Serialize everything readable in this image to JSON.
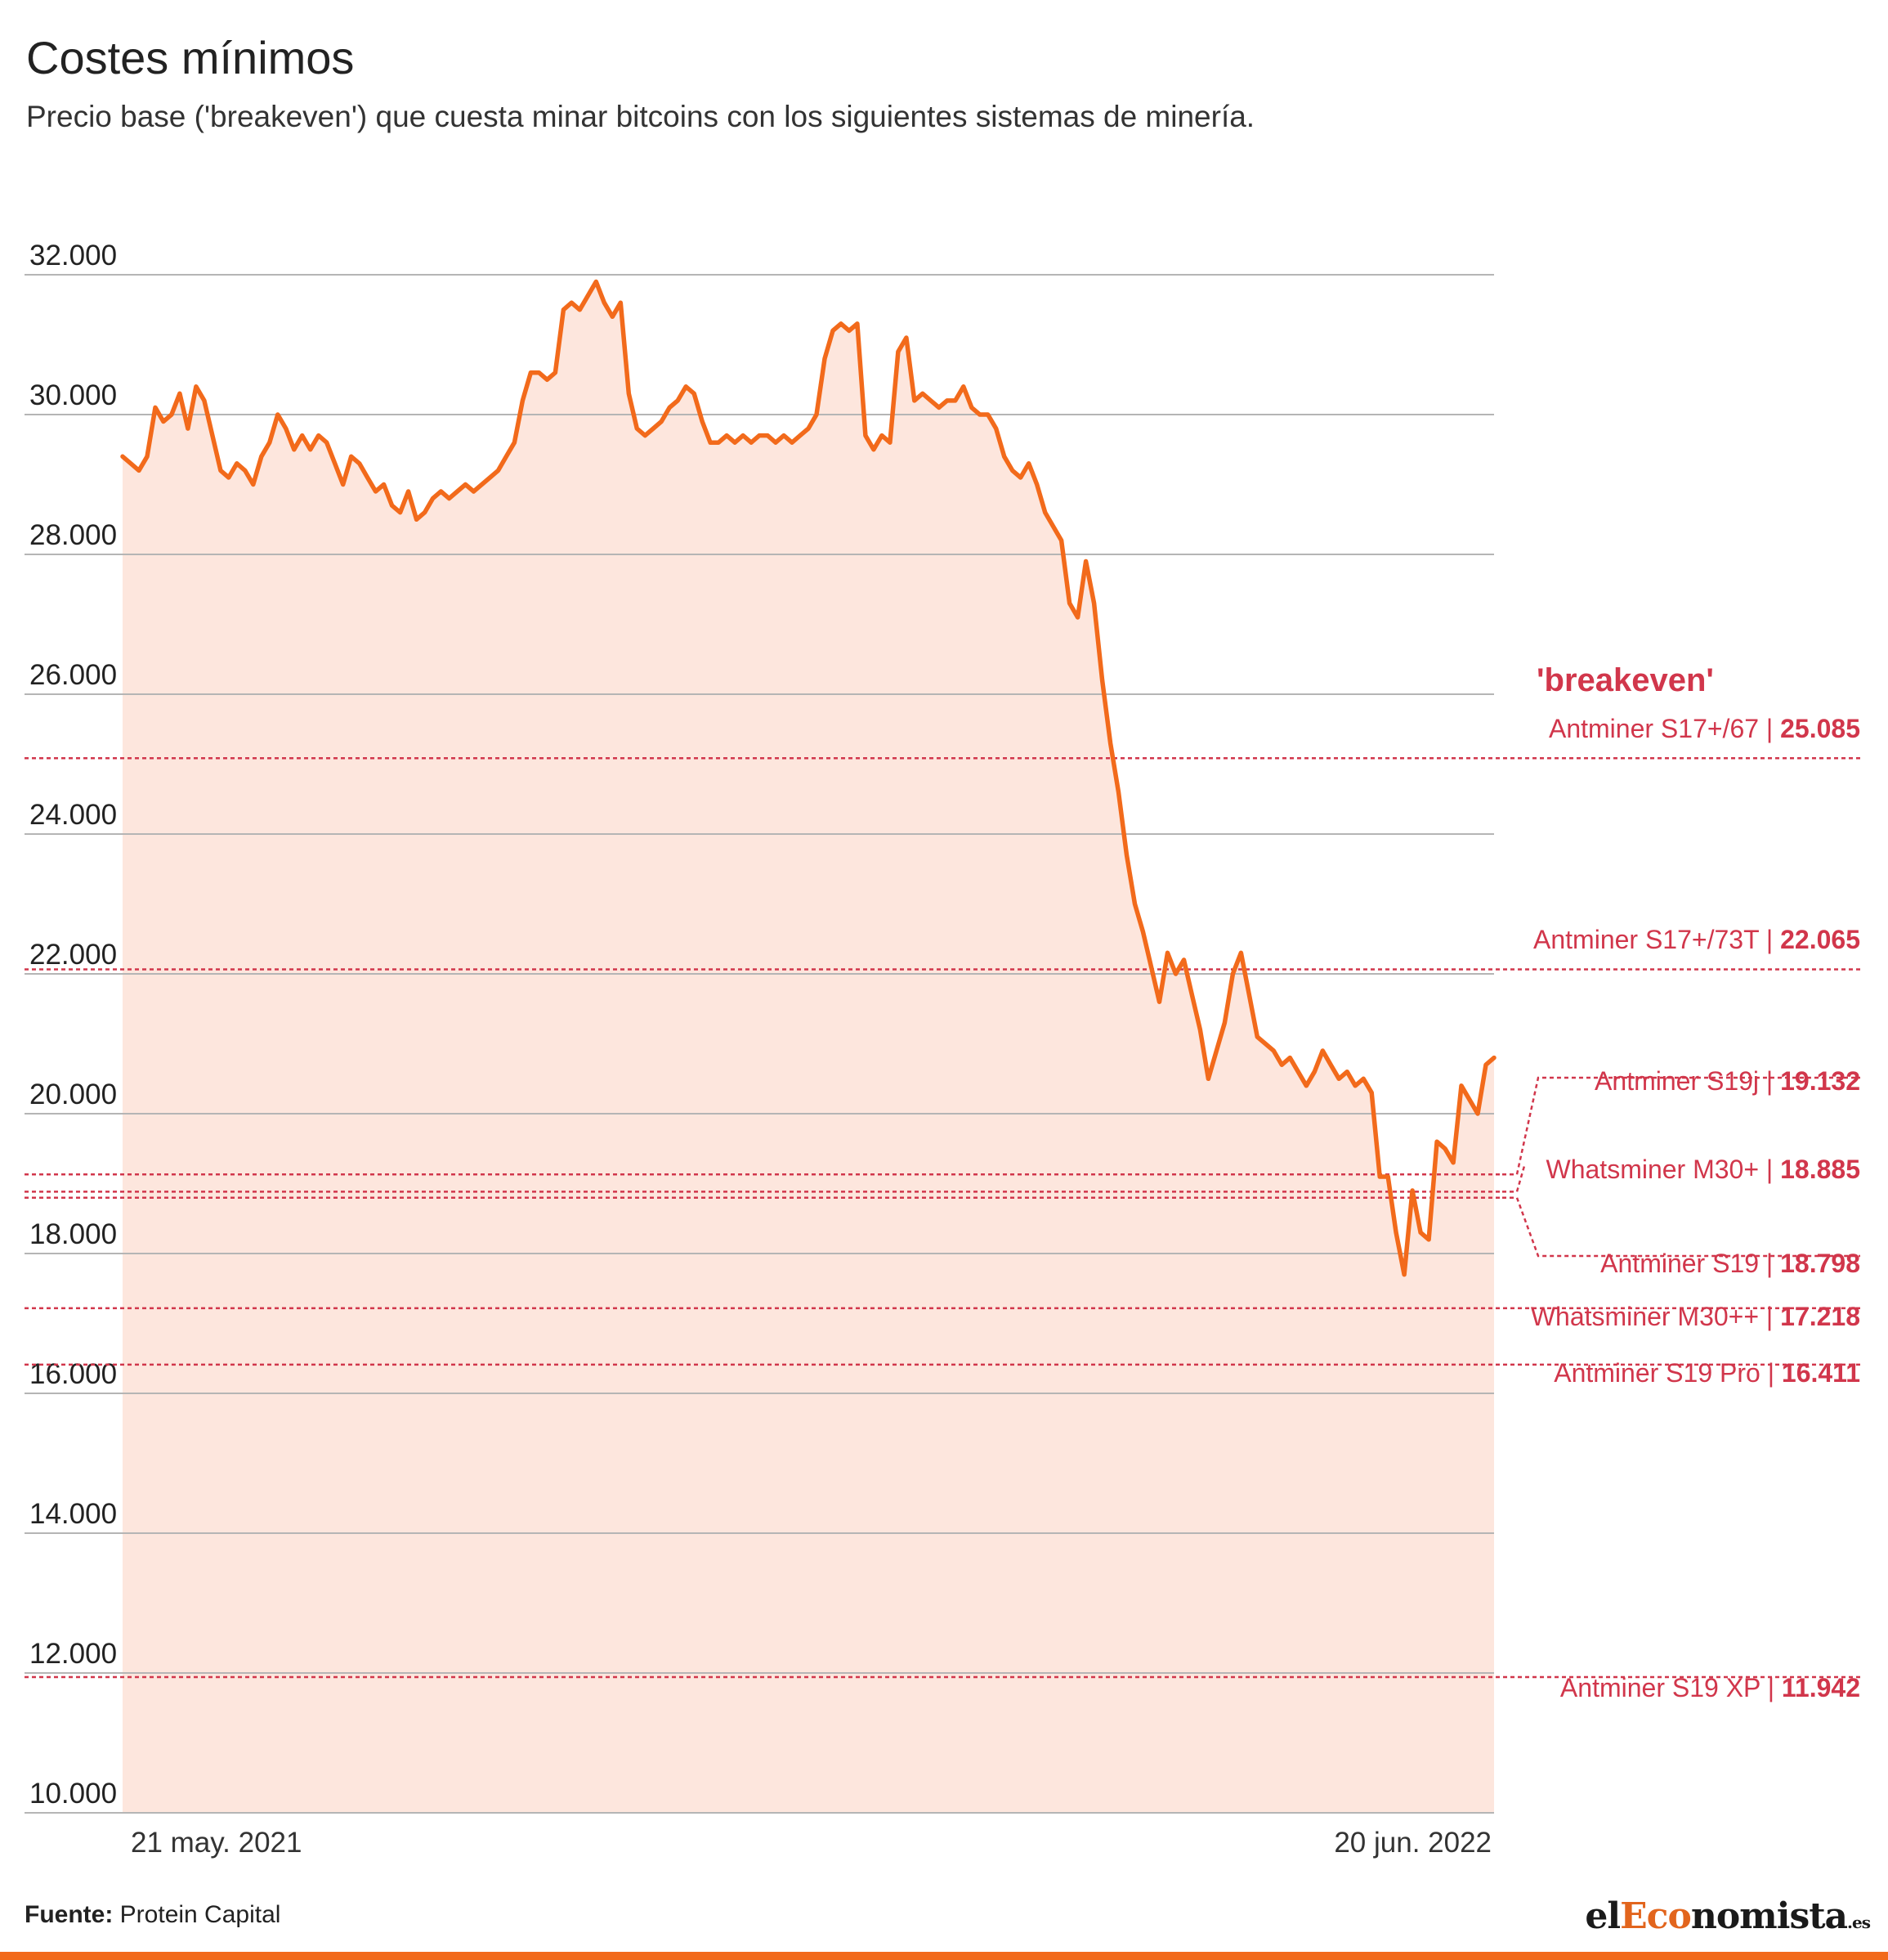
{
  "title": "Costes mínimos",
  "subtitle": "Precio base ('breakeven') que cuesta minar bitcoins con los siguientes sistemas de minería.",
  "footer": {
    "source_label": "Fuente:",
    "source_value": "Protein Capital"
  },
  "brand": {
    "prefix": "el",
    "accent": "Eco",
    "rest": "nomista",
    "tld": ".es"
  },
  "colors": {
    "line": "#f26a1b",
    "area": "#fde6dd",
    "breakeven": "#d1364b",
    "grid": "#b5b5b5"
  },
  "chart_data": {
    "type": "line",
    "title": "Costes mínimos",
    "subtitle": "Precio base ('breakeven') que cuesta minar bitcoins con los siguientes sistemas de minería.",
    "ylim": [
      10000,
      32000
    ],
    "yticks": [
      "10.000",
      "12.000",
      "14.000",
      "16.000",
      "18.000",
      "20.000",
      "22.000",
      "24.000",
      "26.000",
      "28.000",
      "30.000",
      "32.000"
    ],
    "xticks": [
      "21 may. 2021",
      "20 jun. 2022"
    ],
    "x_range": [
      "2021-05-21",
      "2022-06-20"
    ],
    "grid": true,
    "series": [
      {
        "name": "",
        "values": [
          29400,
          29300,
          29200,
          29400,
          30100,
          29900,
          30000,
          30300,
          29800,
          30400,
          30200,
          29700,
          29200,
          29100,
          29300,
          29200,
          29000,
          29400,
          29600,
          30000,
          29800,
          29500,
          29700,
          29500,
          29700,
          29600,
          29300,
          29000,
          29400,
          29300,
          29100,
          28900,
          29000,
          28700,
          28600,
          28900,
          28500,
          28600,
          28800,
          28900,
          28800,
          28900,
          29000,
          28900,
          29000,
          29100,
          29200,
          29400,
          29600,
          30200,
          30600,
          30600,
          30500,
          30600,
          31500,
          31600,
          31500,
          31700,
          31900,
          31600,
          31400,
          31600,
          30300,
          29800,
          29700,
          29800,
          29900,
          30100,
          30200,
          30400,
          30300,
          29900,
          29600,
          29600,
          29700,
          29600,
          29700,
          29600,
          29700,
          29700,
          29600,
          29700,
          29600,
          29700,
          29800,
          30000,
          30800,
          31200,
          31300,
          31200,
          31300,
          29700,
          29500,
          29700,
          29600,
          30900,
          31100,
          30200,
          30300,
          30200,
          30100,
          30200,
          30200,
          30400,
          30100,
          30000,
          30000,
          29800,
          29400,
          29200,
          29100,
          29300,
          29000,
          28600,
          28400,
          28200,
          27300,
          27100,
          27900,
          27300,
          26200,
          25300,
          24600,
          23700,
          23000,
          22600,
          22100,
          21600,
          22300,
          22000,
          22200,
          21700,
          21200,
          20500,
          20900,
          21300,
          22000,
          22300,
          21700,
          21100,
          21000,
          20900,
          20700,
          20800,
          20600,
          20400,
          20600,
          20900,
          20700,
          20500,
          20600,
          20400,
          20500,
          20300,
          19100,
          19100,
          18300,
          17700,
          18900,
          18300,
          18200,
          19600,
          19500,
          19300,
          20400,
          20200,
          20000,
          20700,
          20800
        ]
      }
    ],
    "breakeven_title": "'breakeven'",
    "breakeven": [
      {
        "label": "Antminer S17+/67",
        "value_text": "25.085",
        "value": 25085
      },
      {
        "label": "Antminer S17+/73T",
        "value_text": "22.065",
        "value": 22065
      },
      {
        "label": "Antminer S19j",
        "value_text": "19.132",
        "value": 19132
      },
      {
        "label": "Whatsminer M30+",
        "value_text": "18.885",
        "value": 18885
      },
      {
        "label": "Antminer S19",
        "value_text": "18.798",
        "value": 18798
      },
      {
        "label": "Whatsminer M30++",
        "value_text": "17.218",
        "value": 17218
      },
      {
        "label": "Antminer S19 Pro",
        "value_text": "16.411",
        "value": 16411
      },
      {
        "label": "Antminer S19 XP",
        "value_text": "11.942",
        "value": 11942
      }
    ]
  }
}
